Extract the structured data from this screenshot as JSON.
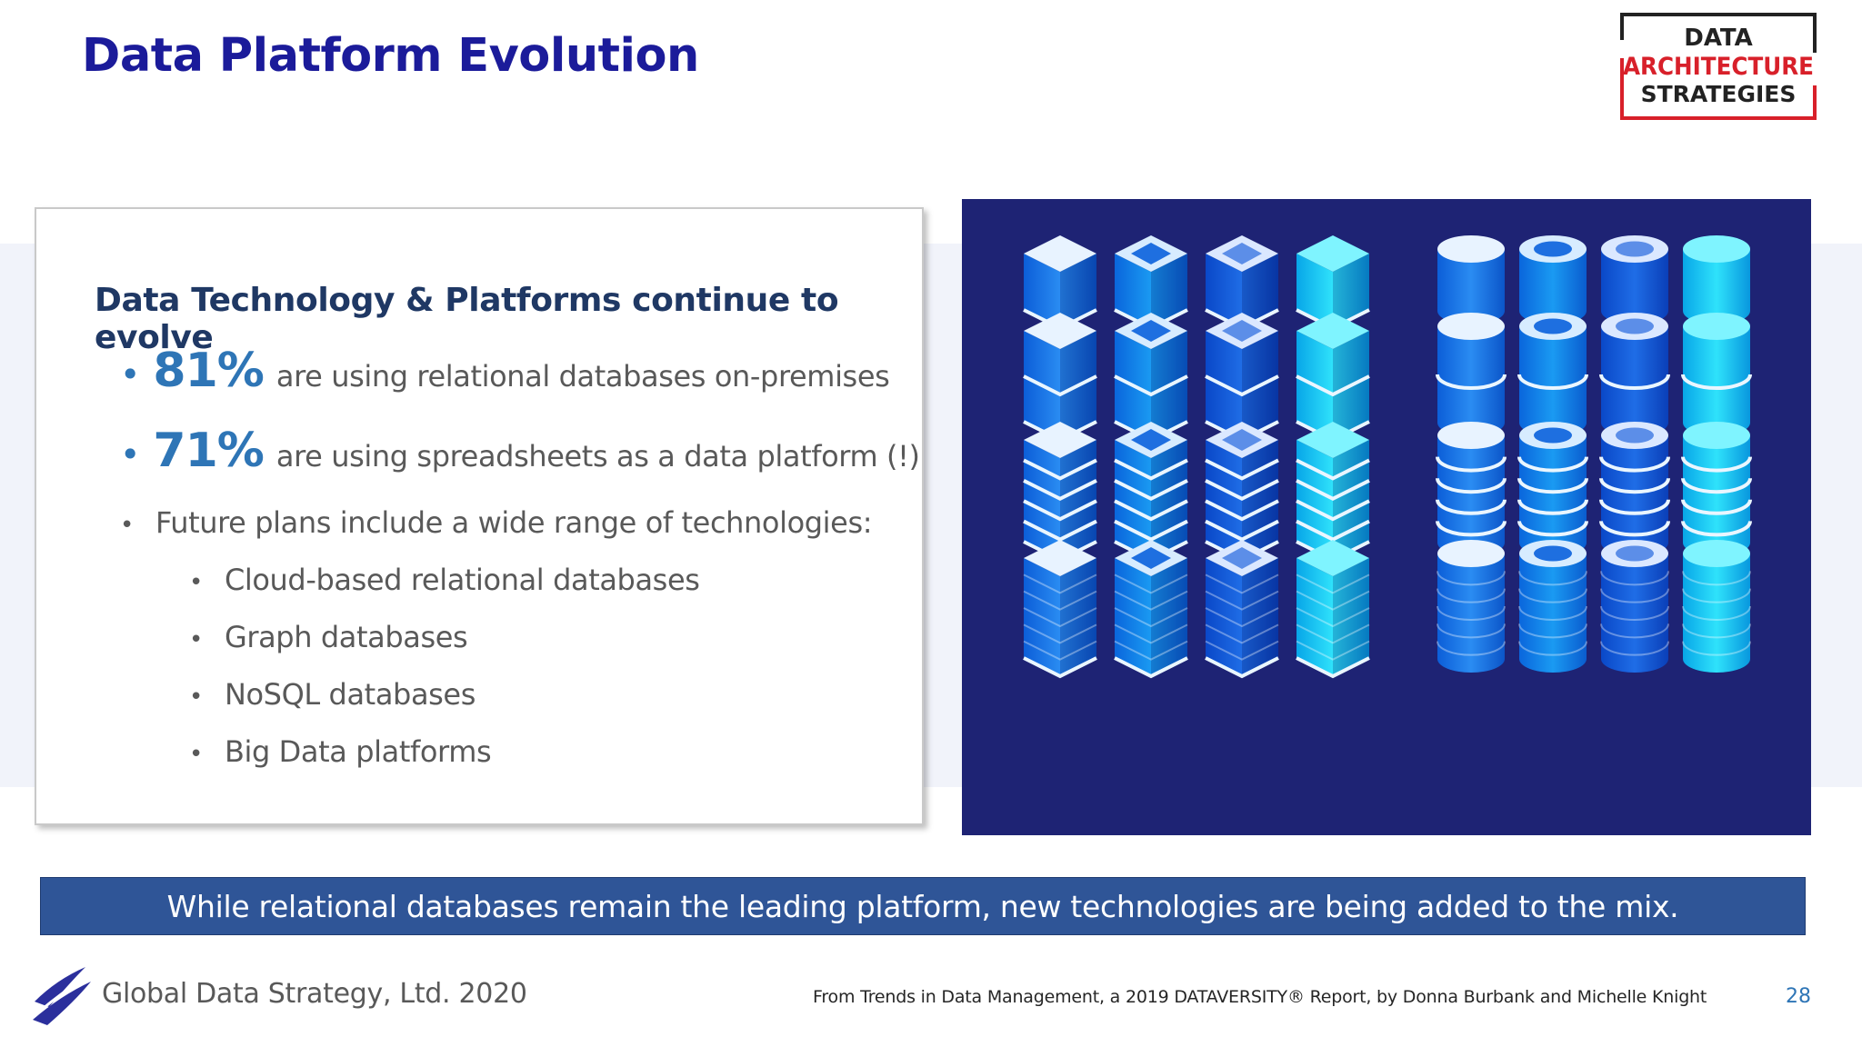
{
  "slide": {
    "title": "Data Platform Evolution"
  },
  "logo": {
    "line1": "DATA",
    "line2": "ARCHITECTURE",
    "line3": "STRATEGIES",
    "brand_color": "#d8202a"
  },
  "card": {
    "heading": "Data Technology & Platforms continue to evolve",
    "stats": [
      {
        "value": "81%",
        "text": "are using relational databases on-premises"
      },
      {
        "value": "71%",
        "text": "are using spreadsheets as a data platform (!)"
      }
    ],
    "future_plans": "Future plans include a wide range of technologies:",
    "technologies": [
      "Cloud-based relational databases",
      "Graph databases",
      "NoSQL databases",
      "Big Data platforms"
    ]
  },
  "illustration": {
    "icon": "database-stack-icons",
    "background_color": "#1e2374"
  },
  "banner": {
    "text": "While relational databases remain the leading platform, new technologies are being added to the mix."
  },
  "footer": {
    "company": "Global Data Strategy, Ltd. 2020",
    "source": "From Trends in Data Management, a 2019 DATAVERSITY® Report, by Donna Burbank and Michelle Knight",
    "page_number": "28"
  }
}
